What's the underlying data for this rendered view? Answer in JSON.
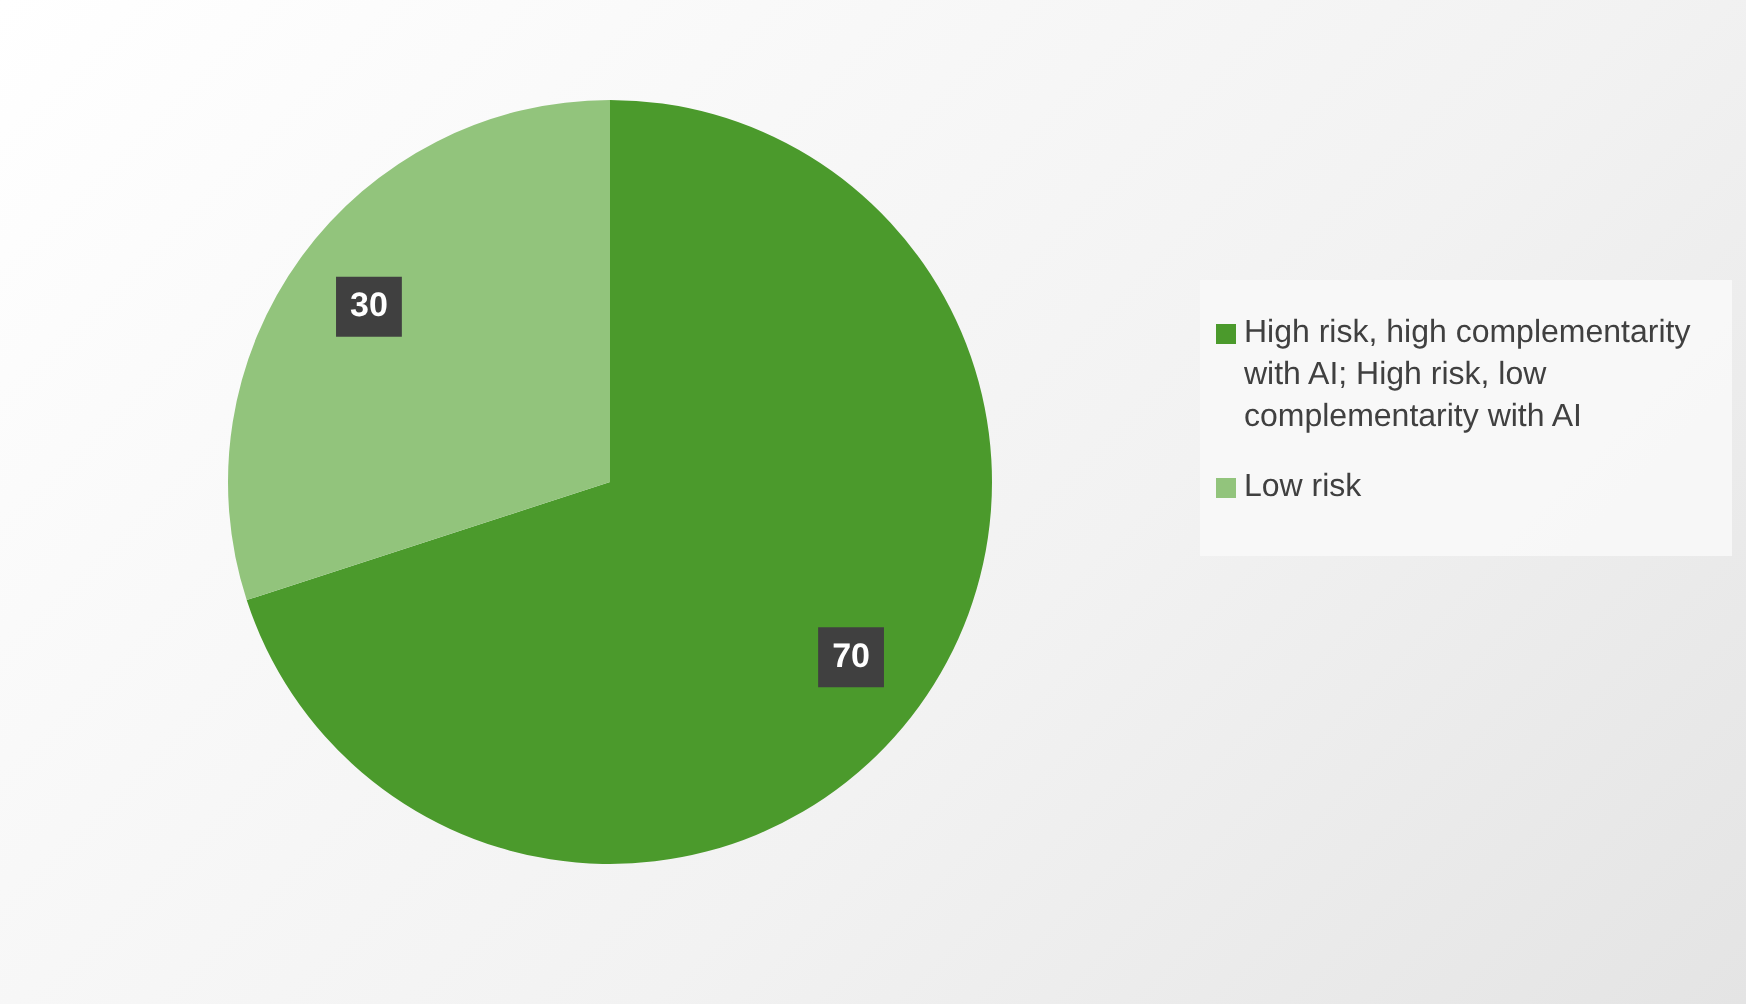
{
  "chart_data": {
    "type": "pie",
    "categories": [
      "High risk, high complementarity with AI; High risk, low complementarity with AI",
      "Low risk"
    ],
    "values": [
      70,
      30
    ],
    "colors": [
      "#4b9a2c",
      "#92c47c"
    ],
    "data_labels": true,
    "legend": "right"
  }
}
